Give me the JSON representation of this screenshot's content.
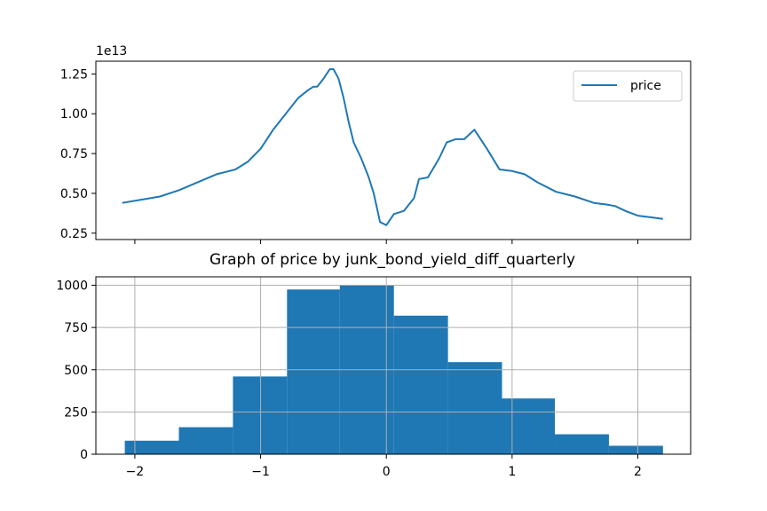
{
  "colors": {
    "series": "#1f77b4",
    "grid": "#b0b0b0",
    "axis": "#000000"
  },
  "chart_data": [
    {
      "type": "line",
      "title": "",
      "xlabel": "",
      "ylabel": "",
      "offset_text": "1e13",
      "xlim": [
        -2.31,
        2.42
      ],
      "ylim": [
        0.21,
        1.33
      ],
      "y_ticks": [
        0.25,
        0.5,
        0.75,
        1.0,
        1.25
      ],
      "y_tick_labels": [
        "0.25",
        "0.50",
        "0.75",
        "1.00",
        "1.25"
      ],
      "x_ticks": [
        -2,
        -1,
        0,
        1,
        2
      ],
      "grid": false,
      "legend": {
        "placement": "top-right",
        "entries": [
          "price"
        ]
      },
      "series": [
        {
          "name": "price",
          "x": [
            -2.1,
            -1.95,
            -1.8,
            -1.65,
            -1.5,
            -1.35,
            -1.2,
            -1.1,
            -1.0,
            -0.9,
            -0.8,
            -0.7,
            -0.62,
            -0.58,
            -0.55,
            -0.5,
            -0.45,
            -0.42,
            -0.38,
            -0.34,
            -0.3,
            -0.26,
            -0.2,
            -0.14,
            -0.1,
            -0.05,
            0.0,
            0.06,
            0.14,
            0.22,
            0.26,
            0.33,
            0.42,
            0.48,
            0.55,
            0.62,
            0.7,
            0.8,
            0.9,
            1.0,
            1.1,
            1.2,
            1.35,
            1.5,
            1.65,
            1.75,
            1.82,
            1.9,
            2.0,
            2.1,
            2.2
          ],
          "values": [
            0.44,
            0.46,
            0.48,
            0.52,
            0.57,
            0.62,
            0.65,
            0.7,
            0.78,
            0.9,
            1.0,
            1.1,
            1.15,
            1.17,
            1.17,
            1.22,
            1.28,
            1.28,
            1.22,
            1.1,
            0.95,
            0.82,
            0.72,
            0.6,
            0.5,
            0.32,
            0.3,
            0.37,
            0.39,
            0.47,
            0.59,
            0.6,
            0.72,
            0.82,
            0.84,
            0.84,
            0.9,
            0.78,
            0.65,
            0.64,
            0.62,
            0.57,
            0.51,
            0.48,
            0.44,
            0.43,
            0.42,
            0.39,
            0.36,
            0.35,
            0.34
          ]
        }
      ]
    },
    {
      "type": "bar",
      "title": "Graph of price by junk_bond_yield_diff_quarterly",
      "xlabel": "",
      "ylabel": "",
      "xlim": [
        -2.31,
        2.42
      ],
      "ylim": [
        0,
        1050
      ],
      "y_ticks": [
        0,
        250,
        500,
        750,
        1000
      ],
      "y_tick_labels": [
        "0",
        "250",
        "500",
        "750",
        "1000"
      ],
      "x_ticks": [
        -2,
        -1,
        0,
        1,
        2
      ],
      "x_tick_labels": [
        "−2",
        "−1",
        "0",
        "1",
        "2"
      ],
      "grid": true,
      "bin_edges": [
        -2.08,
        -1.65,
        -1.22,
        -0.79,
        -0.37,
        0.06,
        0.49,
        0.92,
        1.34,
        1.77,
        2.2
      ],
      "values": [
        80,
        160,
        460,
        975,
        1000,
        820,
        545,
        330,
        118,
        50
      ]
    }
  ]
}
